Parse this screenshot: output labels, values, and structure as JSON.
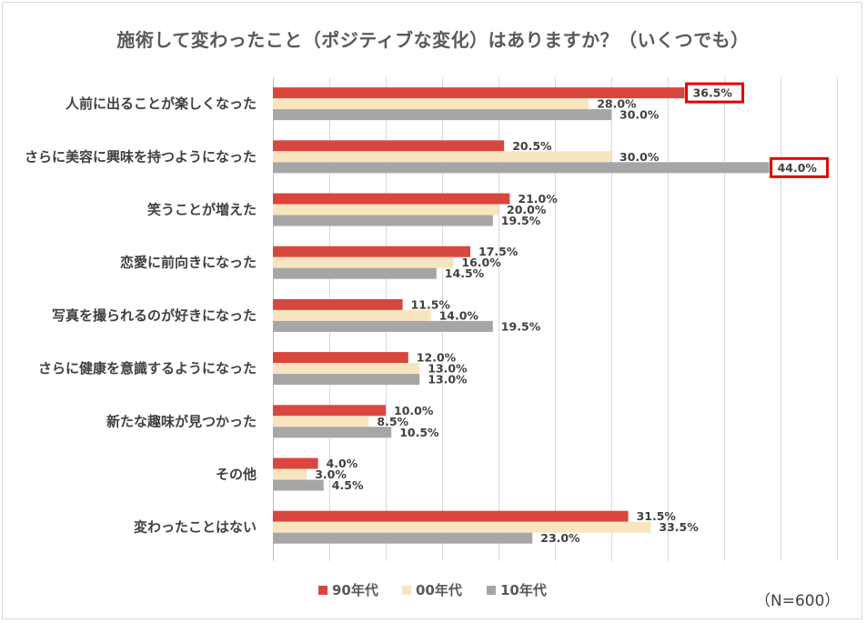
{
  "chart_data": {
    "type": "bar",
    "orientation": "horizontal",
    "title": "施術して変わったこと（ポジティブな変化）はありますか？（いくつでも）",
    "categories": [
      "人前に出ることが楽しくなった",
      "さらに美容に興味を持つようになった",
      "笑うことが増えた",
      "恋愛に前向きになった",
      "写真を撮られるのが好きになった",
      "さらに健康を意識するようになった",
      "新たな趣味が見つかった",
      "その他",
      "変わったことはない"
    ],
    "series": [
      {
        "name": "90年代",
        "color": "#d9463e",
        "values": [
          36.5,
          20.5,
          21.0,
          17.5,
          11.5,
          12.0,
          10.0,
          4.0,
          31.5
        ],
        "labels": [
          "36.5%",
          "20.5%",
          "21.0%",
          "17.5%",
          "11.5%",
          "12.0%",
          "10.0%",
          "4.0%",
          "31.5%"
        ]
      },
      {
        "name": "00年代",
        "color": "#f8e5c0",
        "values": [
          28.0,
          30.0,
          20.0,
          16.0,
          14.0,
          13.0,
          8.5,
          3.0,
          33.5
        ],
        "labels": [
          "28.0%",
          "30.0%",
          "20.0%",
          "16.0%",
          "14.0%",
          "13.0%",
          "8.5%",
          "3.0%",
          "33.5%"
        ]
      },
      {
        "name": "10年代",
        "color": "#a6a6a6",
        "values": [
          30.0,
          44.0,
          19.5,
          14.5,
          19.5,
          13.0,
          10.5,
          4.5,
          23.0
        ],
        "labels": [
          "30.0%",
          "44.0%",
          "19.5%",
          "14.5%",
          "19.5%",
          "13.0%",
          "10.5%",
          "4.5%",
          "23.0%"
        ]
      }
    ],
    "xlim": [
      0,
      50
    ],
    "grid": true,
    "legend_position": "bottom",
    "highlighted": [
      {
        "category": "人前に出ることが楽しくなった",
        "series": "90年代",
        "highlight_color": "#e00000"
      },
      {
        "category": "さらに美容に興味を持つようになった",
        "series": "10年代",
        "highlight_color": "#e00000"
      }
    ]
  },
  "note": "（N=600）"
}
